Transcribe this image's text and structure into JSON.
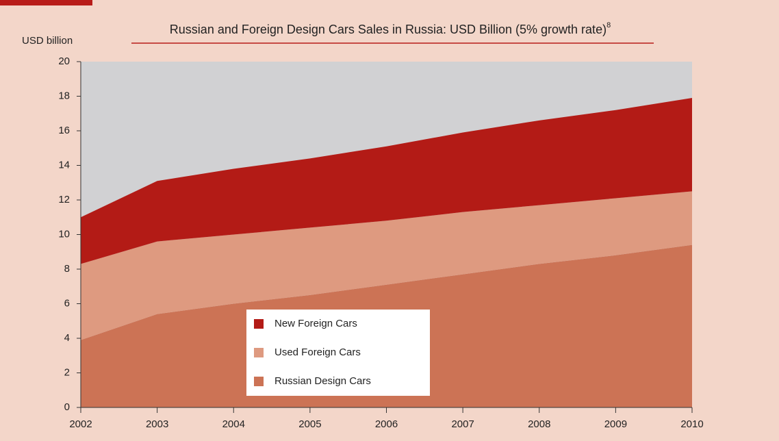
{
  "chart_data": {
    "type": "stacked_area",
    "title": "Russian and Foreign Design Cars Sales in Russia: USD Billion (5% growth rate)",
    "title_footnote": "8",
    "y_axis_label": "USD billion",
    "categories": [
      "2002",
      "2003",
      "2004",
      "2005",
      "2006",
      "2007",
      "2008",
      "2009",
      "2010"
    ],
    "series": [
      {
        "name": "Russian Design Cars",
        "color": "#cc7355",
        "values": [
          3.9,
          5.4,
          6.0,
          6.5,
          7.1,
          7.7,
          8.3,
          8.8,
          9.4
        ]
      },
      {
        "name": "Used Foreign Cars",
        "color": "#de9a80",
        "values": [
          4.4,
          4.2,
          4.0,
          3.9,
          3.7,
          3.6,
          3.4,
          3.3,
          3.1
        ]
      },
      {
        "name": "New Foreign Cars",
        "color": "#b31b16",
        "values": [
          2.7,
          3.5,
          3.8,
          4.0,
          4.3,
          4.6,
          4.9,
          5.1,
          5.4
        ]
      }
    ],
    "ylim": [
      0,
      20
    ],
    "yticks": [
      0,
      2,
      4,
      6,
      8,
      10,
      12,
      14,
      16,
      18,
      20
    ],
    "plot_background": "#d1d1d3"
  }
}
